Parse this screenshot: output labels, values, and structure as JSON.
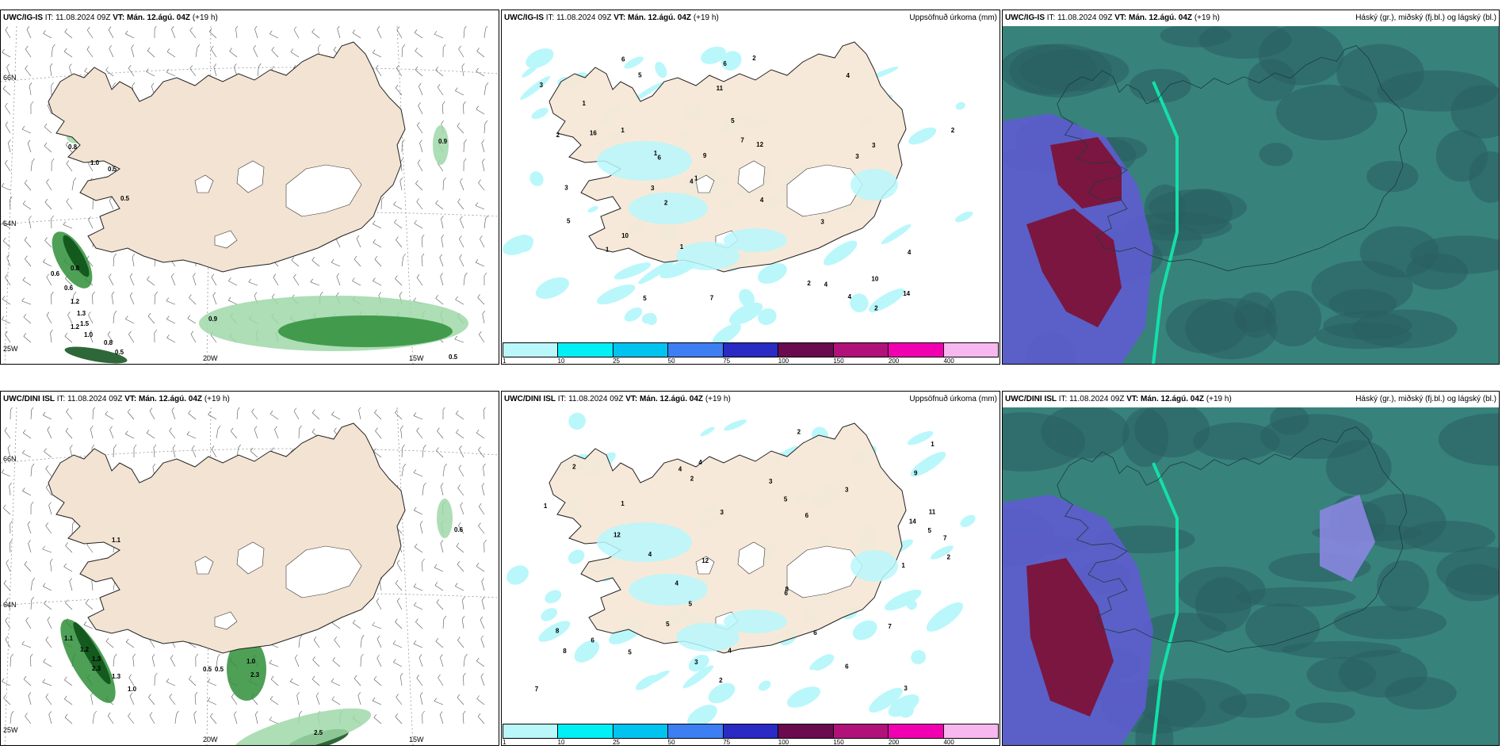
{
  "panels": [
    {
      "model": "UWC/IG-IS",
      "it": "IT: 11.08.2024 09Z",
      "vt": "VT: Mán. 12.ágú. 04Z",
      "lead": "(+19 h)",
      "right_title": ""
    },
    {
      "model": "UWC/IG-IS",
      "it": "IT: 11.08.2024 09Z",
      "vt": "VT: Mán. 12.ágú. 04Z",
      "lead": "(+19 h)",
      "right_title": "Uppsöfnuð úrkoma (mm)"
    },
    {
      "model": "UWC/IG-IS",
      "it": "IT: 11.08.2024 09Z",
      "vt": "VT: Mán. 12.ágú. 04Z",
      "lead": "(+19 h)",
      "right_title": "Háský (gr.), miðský (fj.bl.) og lágský (bl.)"
    },
    {
      "model": "UWC/DINI ISL",
      "it": "IT: 11.08.2024 09Z",
      "vt": "VT: Mán. 12.ágú. 04Z",
      "lead": "(+19 h)",
      "right_title": ""
    },
    {
      "model": "UWC/DINI ISL",
      "it": "IT: 11.08.2024 09Z",
      "vt": "VT: Mán. 12.ágú. 04Z",
      "lead": "(+19 h)",
      "right_title": "Uppsöfnuð úrkoma (mm)"
    },
    {
      "model": "UWC/DINI ISL",
      "it": "IT: 11.08.2024 09Z",
      "vt": "VT: Mán. 12.ágú. 04Z",
      "lead": "(+19 h)",
      "right_title": "Háský (gr.), miðský (fj.bl.) og lágský (bl.)"
    }
  ],
  "graticule": {
    "lat66": "66N",
    "lat64": "64N",
    "lon25": "25W",
    "lon20": "20W",
    "lon15": "15W"
  },
  "precip_legend": {
    "ticks": [
      "1",
      "10",
      "25",
      "50",
      "75",
      "100",
      "150",
      "200",
      "400"
    ],
    "colors": [
      "#b9f7fb",
      "#00f0f5",
      "#00c4ef",
      "#3d7ef2",
      "#2a2ac4",
      "#6a0a4f",
      "#b0127a",
      "#f000b0",
      "#f7b8f0"
    ]
  },
  "wind_labels_top": [
    "0.8",
    "1.0",
    "0.5",
    "0.5",
    "0.9",
    "0.8",
    "0.6",
    "0.6",
    "1.2",
    "1.3",
    "1.5",
    "1.2",
    "1.0",
    "0.8",
    "0.5",
    "0.5",
    "0.9"
  ],
  "wind_labels_bottom": [
    "1.1",
    "0.6",
    "1.1",
    "1.2",
    "1.3",
    "2.3",
    "1.3",
    "1.0",
    "0.5",
    "0.5",
    "1.0",
    "2.3",
    "2.5"
  ],
  "precip_numbers_top": [
    "1",
    "2",
    "4",
    "3",
    "5",
    "6",
    "7",
    "9",
    "10",
    "12",
    "11",
    "14",
    "4",
    "3",
    "2",
    "1",
    "5",
    "7",
    "10",
    "16",
    "1",
    "2",
    "3",
    "4",
    "5",
    "6",
    "4",
    "2",
    "3",
    "1",
    "2",
    "3",
    "4",
    "2",
    "1",
    "3",
    "5",
    "6",
    "4",
    "1"
  ],
  "precip_numbers_bottom": [
    "2",
    "3",
    "4",
    "6",
    "5",
    "14",
    "9",
    "12",
    "8",
    "7",
    "6",
    "5",
    "4",
    "3",
    "2",
    "1",
    "5",
    "8",
    "7",
    "6",
    "12",
    "11",
    "4",
    "5",
    "3",
    "2",
    "1",
    "7",
    "8",
    "1",
    "2",
    "3",
    "4",
    "5",
    "6",
    "3",
    "2",
    "4",
    "6",
    "1"
  ]
}
